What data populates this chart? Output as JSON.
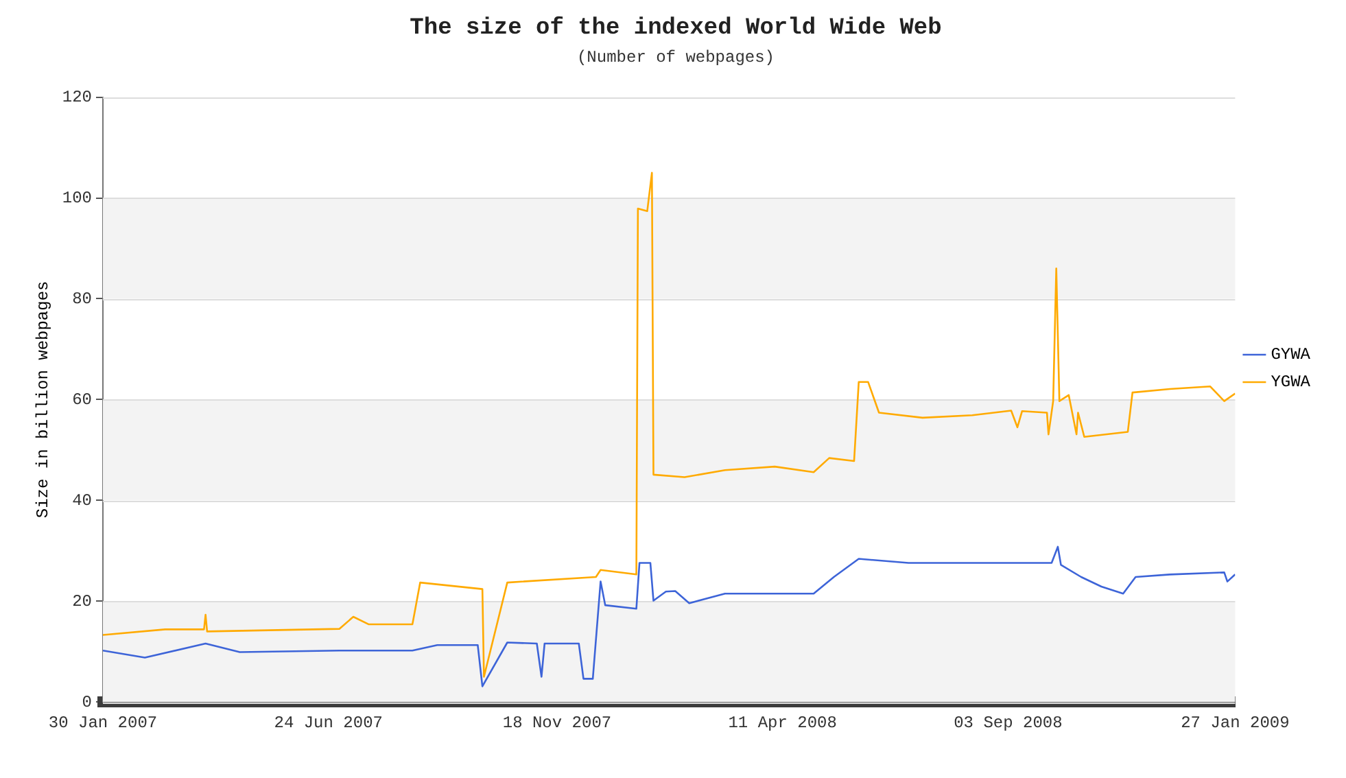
{
  "chart_data": {
    "type": "line",
    "title": "The size of the indexed World Wide Web",
    "subtitle": "(Number of webpages)",
    "ylabel": "Size in billion webpages",
    "xlim": [
      "2007-01-30",
      "2009-01-27"
    ],
    "xticks": [
      {
        "value": "2007-01-30",
        "label": "30 Jan 2007"
      },
      {
        "value": "2007-06-24",
        "label": "24 Jun 2007"
      },
      {
        "value": "2007-11-18",
        "label": "18 Nov 2007"
      },
      {
        "value": "2008-04-11",
        "label": "11 Apr 2008"
      },
      {
        "value": "2008-09-03",
        "label": "03 Sep 2008"
      },
      {
        "value": "2009-01-27",
        "label": "27 Jan 2009"
      }
    ],
    "ylim": [
      0,
      120
    ],
    "yticks": [
      0,
      20,
      40,
      60,
      80,
      100,
      120
    ],
    "grid": "y",
    "legend": "right",
    "marker": "none",
    "line_style": "solid",
    "series": [
      {
        "name": "GYWA",
        "color": "#3d64d8",
        "x": [
          "2007-01-30",
          "2007-02-26",
          "2007-04-06",
          "2007-04-28",
          "2007-07-01",
          "2007-08-17",
          "2007-09-02",
          "2007-09-28",
          "2007-10-01",
          "2007-10-17",
          "2007-11-05",
          "2007-11-08",
          "2007-11-10",
          "2007-12-02",
          "2007-12-05",
          "2007-12-11",
          "2007-12-16",
          "2007-12-19",
          "2008-01-08",
          "2008-01-10",
          "2008-01-17",
          "2008-01-19",
          "2008-01-27",
          "2008-02-02",
          "2008-02-11",
          "2008-03-05",
          "2008-05-01",
          "2008-05-14",
          "2008-05-30",
          "2008-07-01",
          "2008-10-01",
          "2008-10-05",
          "2008-10-07",
          "2008-10-20",
          "2008-11-02",
          "2008-11-16",
          "2008-11-24",
          "2008-12-16",
          "2009-01-20",
          "2009-01-22",
          "2009-01-27"
        ],
        "values": [
          10.2,
          8.8,
          11.6,
          9.9,
          10.2,
          10.2,
          11.3,
          11.3,
          3.1,
          11.8,
          11.6,
          5.0,
          11.6,
          11.6,
          4.6,
          4.6,
          23.9,
          19.2,
          18.5,
          27.6,
          27.6,
          20.1,
          21.9,
          22.0,
          19.6,
          21.5,
          21.5,
          24.8,
          28.4,
          27.6,
          27.6,
          30.8,
          27.2,
          24.8,
          22.9,
          21.5,
          24.8,
          25.3,
          25.7,
          23.9,
          25.3
        ]
      },
      {
        "name": "YGWA",
        "color": "#ffaa00",
        "x": [
          "2007-01-30",
          "2007-03-11",
          "2007-04-05",
          "2007-04-06",
          "2007-04-07",
          "2007-07-01",
          "2007-07-10",
          "2007-07-20",
          "2007-08-17",
          "2007-08-19",
          "2007-08-22",
          "2007-10-01",
          "2007-10-02",
          "2007-10-17",
          "2007-12-13",
          "2007-12-16",
          "2008-01-08",
          "2008-01-09",
          "2008-01-15",
          "2008-01-18",
          "2008-01-19",
          "2008-02-08",
          "2008-03-05",
          "2008-04-06",
          "2008-05-01",
          "2008-05-11",
          "2008-05-27",
          "2008-05-30",
          "2008-06-05",
          "2008-06-12",
          "2008-07-10",
          "2008-08-11",
          "2008-09-05",
          "2008-09-09",
          "2008-09-12",
          "2008-09-28",
          "2008-09-29",
          "2008-10-02",
          "2008-10-04",
          "2008-10-06",
          "2008-10-12",
          "2008-10-17",
          "2008-10-18",
          "2008-10-22",
          "2008-11-19",
          "2008-11-22",
          "2008-12-16",
          "2009-01-11",
          "2009-01-20",
          "2009-01-27"
        ],
        "values": [
          13.3,
          14.4,
          14.4,
          17.3,
          14.0,
          14.5,
          16.9,
          15.4,
          15.4,
          18.7,
          23.7,
          22.4,
          5.0,
          23.7,
          24.8,
          26.2,
          25.3,
          97.9,
          97.4,
          105.0,
          45.1,
          44.6,
          46.0,
          46.7,
          45.6,
          48.4,
          47.8,
          63.5,
          63.5,
          57.4,
          56.4,
          56.9,
          57.8,
          54.5,
          57.7,
          57.4,
          53.1,
          59.7,
          86.0,
          59.7,
          60.9,
          53.1,
          57.4,
          52.6,
          53.6,
          61.4,
          62.1,
          62.6,
          59.7,
          61.2
        ]
      }
    ]
  }
}
